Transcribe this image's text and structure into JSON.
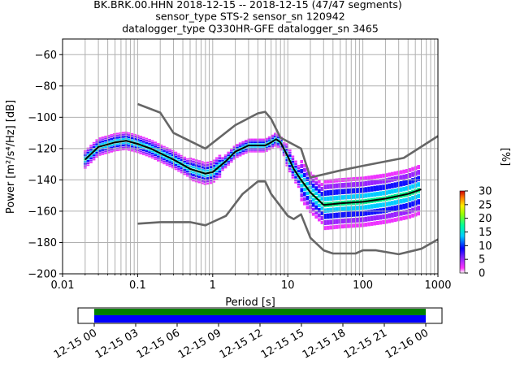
{
  "header": {
    "line1": "BK.BRK.00.HHN   2018-12-15 -- 2018-12-15  (47/47 segments)",
    "line2": "sensor_type STS-2 sensor_sn 120942",
    "line3": "datalogger_type Q330HR-GFE datalogger_sn 3465"
  },
  "chart_data": {
    "type": "heatmap",
    "xlabel": "Period [s]",
    "ylabel": "Power [m²/s⁴/Hz] [dB]",
    "x_scale": "log",
    "xlim": [
      0.01,
      1000
    ],
    "ylim": [
      -200,
      -50
    ],
    "x_ticks": [
      {
        "value": 0.01,
        "label": "0.01"
      },
      {
        "value": 0.1,
        "label": "0.1"
      },
      {
        "value": 1,
        "label": "1"
      },
      {
        "value": 10,
        "label": "10"
      },
      {
        "value": 100,
        "label": "100"
      },
      {
        "value": 1000,
        "label": "1000"
      }
    ],
    "y_ticks": [
      {
        "value": -60,
        "label": "−60"
      },
      {
        "value": -80,
        "label": "−80"
      },
      {
        "value": -100,
        "label": "−100"
      },
      {
        "value": -120,
        "label": "−120"
      },
      {
        "value": -140,
        "label": "−140"
      },
      {
        "value": -160,
        "label": "−160"
      },
      {
        "value": -180,
        "label": "−180"
      },
      {
        "value": -200,
        "label": "−200"
      }
    ],
    "grid": true,
    "series": [
      {
        "x": [
          0.02,
          0.03,
          0.05,
          0.07,
          0.1,
          0.15,
          0.2,
          0.3,
          0.5,
          0.8,
          1.0,
          1.5,
          2.0,
          3.0,
          4.0,
          5.0,
          6.0,
          7.0,
          8.0,
          10.0,
          12.0,
          15.0,
          20.0,
          30.0,
          50.0,
          100.0,
          200.0,
          400.0,
          600.0
        ],
        "y": [
          -127,
          -119,
          -116,
          -115,
          -117,
          -120,
          -123,
          -127,
          -133,
          -136,
          -135,
          -128,
          -122,
          -118,
          -118,
          -118,
          -116,
          -114,
          -116,
          -125,
          -133,
          -140,
          -148,
          -156,
          -155,
          -154,
          -152,
          -149,
          -146
        ]
      },
      {
        "x": [
          0.1,
          0.2,
          0.3,
          0.8,
          2.0,
          4.0,
          5.0,
          6.0,
          8.0,
          15.0,
          20.0,
          50.0,
          100.0,
          350.0,
          1000.0
        ],
        "y": [
          -91.5,
          -97,
          -110,
          -120,
          -105,
          -97.5,
          -96.5,
          -101,
          -113,
          -120,
          -138.5,
          -134,
          -131,
          -126,
          -112
        ]
      },
      {
        "x": [
          0.1,
          0.2,
          0.5,
          0.8,
          1.5,
          2.5,
          4.0,
          5.0,
          6.0,
          10.0,
          12.0,
          15.0,
          20.0,
          30.0,
          40.0,
          60.0,
          80.0,
          100.0,
          150.0,
          300.0,
          600.0,
          1000.0
        ],
        "y": [
          -168,
          -167,
          -167,
          -169,
          -163,
          -149,
          -141,
          -141,
          -149,
          -163,
          -165,
          -162,
          -177,
          -185,
          -187,
          -187,
          -187,
          -185,
          -185,
          -187.5,
          -184,
          -178
        ]
      }
    ],
    "colorbar": {
      "label": "[%]",
      "min": 0,
      "max": 30,
      "ticks": [
        {
          "value": 0,
          "label": "0"
        },
        {
          "value": 5,
          "label": "5"
        },
        {
          "value": 10,
          "label": "10"
        },
        {
          "value": 15,
          "label": "15"
        },
        {
          "value": 20,
          "label": "20"
        },
        {
          "value": 25,
          "label": "25"
        },
        {
          "value": 30,
          "label": "30"
        }
      ]
    },
    "coverage": {
      "start": "2018-12-15 00:00",
      "end": "2018-12-16 00:00",
      "axis_start": "2018-12-14 22:52",
      "axis_end": "2018-12-16 01:08",
      "tick_labels": [
        "12-15 00",
        "12-15 03",
        "12-15 06",
        "12-15 09",
        "12-15 12",
        "12-15 15",
        "12-15 18",
        "12-15 21",
        "12-16 00"
      ]
    },
    "colors": {
      "mean": "#000000",
      "model": "#666666",
      "grid": "#b0b0b0",
      "coverage_top": "#008000",
      "coverage_bottom": "#0000ff"
    }
  }
}
